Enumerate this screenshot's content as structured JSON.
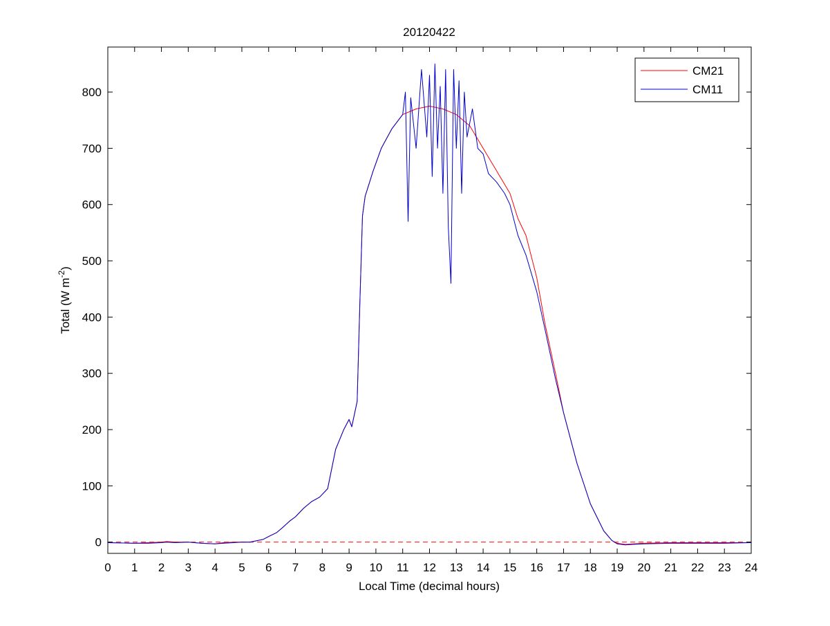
{
  "chart_data": {
    "type": "line",
    "title": "20120422",
    "xlabel": "Local Time (decimal hours)",
    "ylabel": "Total (W m",
    "ylabel_superscript": "-2",
    "ylabel_suffix": ")",
    "xlim": [
      0,
      24
    ],
    "ylim": [
      -20,
      880
    ],
    "xticks": [
      0,
      1,
      2,
      3,
      4,
      5,
      6,
      7,
      8,
      9,
      10,
      11,
      12,
      13,
      14,
      15,
      16,
      17,
      18,
      19,
      20,
      21,
      22,
      23,
      24
    ],
    "yticks": [
      0,
      100,
      200,
      300,
      400,
      500,
      600,
      700,
      800
    ],
    "grid": false,
    "legend_position": "top-right",
    "reference_line": {
      "y": 0,
      "color": "#ff0000",
      "style": "dashed"
    },
    "series": [
      {
        "name": "CM21",
        "color": "#ff0000",
        "x": [
          0,
          1,
          1.5,
          2,
          2.2,
          2.5,
          3,
          3.5,
          4,
          4.3,
          4.7,
          5,
          5.3,
          5.5,
          5.8,
          6,
          6.3,
          6.5,
          6.8,
          7,
          7.3,
          7.6,
          7.9,
          8.2,
          8.5,
          8.8,
          9,
          9.1,
          9.3,
          9.4,
          9.5,
          9.6,
          9.7,
          9.9,
          10.2,
          10.6,
          11,
          11.5,
          12,
          12.5,
          13,
          13.5,
          14,
          14.5,
          15,
          15.3,
          15.6,
          16,
          16.3,
          16.7,
          17,
          17.5,
          18,
          18.5,
          18.8,
          19,
          19.3,
          19.6,
          20,
          21,
          22,
          23,
          24
        ],
        "values": [
          -1,
          -2,
          -1,
          0,
          1,
          0,
          0,
          -2,
          -3,
          -1,
          0,
          0,
          0,
          2,
          5,
          10,
          17,
          25,
          38,
          45,
          60,
          72,
          80,
          95,
          165,
          200,
          218,
          205,
          250,
          420,
          580,
          615,
          630,
          660,
          700,
          735,
          760,
          770,
          775,
          770,
          760,
          740,
          700,
          660,
          620,
          575,
          545,
          470,
          390,
          300,
          230,
          140,
          68,
          20,
          3,
          -2,
          -4,
          -3,
          -2,
          -1,
          -1,
          -1,
          -1
        ]
      },
      {
        "name": "CM11",
        "color": "#0000cc",
        "x": [
          0,
          1,
          1.5,
          2,
          2.2,
          2.5,
          3,
          3.5,
          4,
          4.3,
          4.7,
          5,
          5.3,
          5.5,
          5.8,
          6,
          6.3,
          6.5,
          6.8,
          7,
          7.3,
          7.6,
          7.9,
          8.2,
          8.5,
          8.8,
          9,
          9.1,
          9.3,
          9.4,
          9.5,
          9.6,
          9.7,
          9.9,
          10.2,
          10.6,
          11,
          11.1,
          11.2,
          11.3,
          11.5,
          11.7,
          11.9,
          12,
          12.1,
          12.2,
          12.3,
          12.4,
          12.5,
          12.6,
          12.7,
          12.8,
          12.9,
          13,
          13.1,
          13.2,
          13.3,
          13.4,
          13.6,
          13.8,
          14,
          14.2,
          14.5,
          14.8,
          15,
          15.3,
          15.6,
          16,
          16.3,
          16.7,
          17,
          17.5,
          18,
          18.5,
          18.8,
          19,
          19.3,
          19.6,
          20,
          21,
          22,
          23,
          24
        ],
        "values": [
          -1,
          -2,
          -2,
          -1,
          0,
          -1,
          0,
          -2,
          -3,
          -2,
          -1,
          0,
          0,
          2,
          5,
          10,
          17,
          25,
          38,
          45,
          60,
          72,
          80,
          95,
          165,
          200,
          218,
          205,
          250,
          420,
          580,
          615,
          630,
          660,
          700,
          735,
          760,
          800,
          570,
          790,
          700,
          840,
          720,
          830,
          650,
          850,
          700,
          810,
          620,
          840,
          560,
          460,
          840,
          700,
          820,
          620,
          800,
          720,
          770,
          700,
          690,
          655,
          640,
          620,
          600,
          545,
          510,
          445,
          380,
          290,
          230,
          140,
          68,
          20,
          3,
          -3,
          -5,
          -4,
          -3,
          -2,
          -2,
          -2,
          -1
        ]
      }
    ]
  }
}
